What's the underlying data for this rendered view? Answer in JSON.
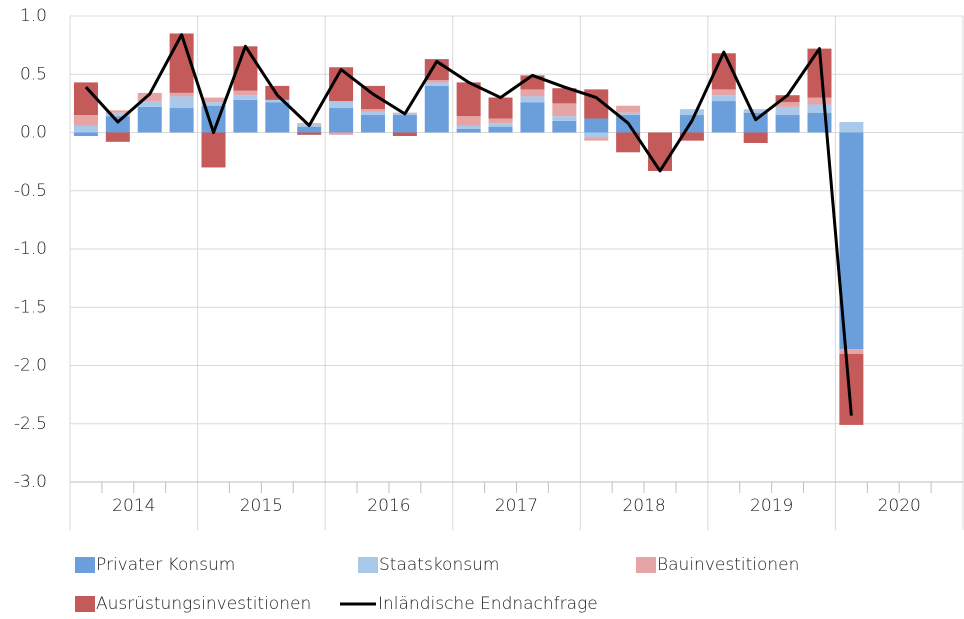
{
  "chart_data": {
    "type": "stacked-bar-line",
    "categories": [
      null,
      null,
      null,
      null,
      null,
      null,
      null,
      null,
      null,
      null,
      null,
      null,
      null,
      null,
      null,
      null,
      null,
      null,
      null,
      null,
      null,
      null,
      null,
      null,
      null,
      null,
      null,
      null
    ],
    "x_groups": [
      "2014",
      "2015",
      "2016",
      "2017",
      "2018",
      "2019",
      "2020"
    ],
    "series": [
      {
        "name": "Privater Konsum",
        "color": "#6a9fdc",
        "kind": "bar",
        "values": [
          -0.03,
          0.14,
          0.22,
          0.21,
          0.23,
          0.28,
          0.26,
          0.05,
          0.21,
          0.15,
          0.15,
          0.4,
          0.03,
          0.05,
          0.26,
          0.1,
          0.12,
          0.15,
          0,
          0.15,
          0.27,
          0.17,
          0.15,
          0.17,
          -1.86,
          null,
          null,
          null
        ]
      },
      {
        "name": "Staatskonsum",
        "color": "#a9c8ea",
        "kind": "bar",
        "values": [
          0.06,
          0.03,
          0.05,
          0.1,
          0.03,
          0.04,
          0.02,
          0.02,
          0.06,
          0.03,
          0.01,
          0.03,
          0.03,
          0.03,
          0.05,
          0.04,
          -0.04,
          0.02,
          0,
          0.05,
          0.05,
          0.03,
          0.07,
          0.07,
          0.09,
          null,
          null,
          null
        ]
      },
      {
        "name": "Bauinvestitionen",
        "color": "#e5a5a5",
        "kind": "bar",
        "values": [
          0.09,
          0.02,
          0.07,
          0.03,
          0.04,
          0.04,
          0,
          0.01,
          -0.02,
          0.02,
          0.01,
          0.02,
          0.08,
          0.04,
          0.06,
          0.11,
          -0.03,
          0.06,
          0,
          0,
          0.05,
          0,
          0.04,
          0.06,
          -0.04,
          null,
          null,
          null
        ]
      },
      {
        "name": "Ausrüstungsinvestitionen",
        "color": "#c55a5a",
        "kind": "bar",
        "values": [
          0.28,
          -0.08,
          0,
          0.51,
          -0.3,
          0.38,
          0.12,
          -0.02,
          0.29,
          0.2,
          -0.03,
          0.18,
          0.29,
          0.18,
          0.12,
          0.13,
          0.25,
          -0.17,
          -0.33,
          -0.07,
          0.31,
          -0.09,
          0.06,
          0.42,
          -0.61,
          null,
          null,
          null
        ]
      },
      {
        "name": "Inländische Endnachfrage",
        "color": "#000000",
        "kind": "line",
        "values": [
          0.39,
          0.09,
          0.33,
          0.84,
          0.0,
          0.74,
          0.32,
          0.06,
          0.54,
          0.33,
          0.16,
          0.61,
          0.43,
          0.3,
          0.49,
          0.39,
          0.3,
          0.08,
          -0.33,
          0.1,
          0.69,
          0.11,
          0.32,
          0.72,
          -2.43,
          null,
          null,
          null
        ]
      }
    ],
    "ylim": [
      -3.0,
      1.0
    ],
    "yticks": [
      {
        "value": 1.0,
        "label": "1.0"
      },
      {
        "value": 0.5,
        "label": "0.5"
      },
      {
        "value": 0,
        "label": "0.0"
      },
      {
        "value": -0.5,
        "label": "-0.5"
      },
      {
        "value": -1.0,
        "label": "-1.0"
      },
      {
        "value": -1.5,
        "label": "-1.5"
      },
      {
        "value": -2.0,
        "label": "-2.0"
      },
      {
        "value": -2.5,
        "label": "-2.5"
      },
      {
        "value": -3.0,
        "label": "-3.0"
      }
    ],
    "grid": true,
    "legend": "bottom"
  }
}
